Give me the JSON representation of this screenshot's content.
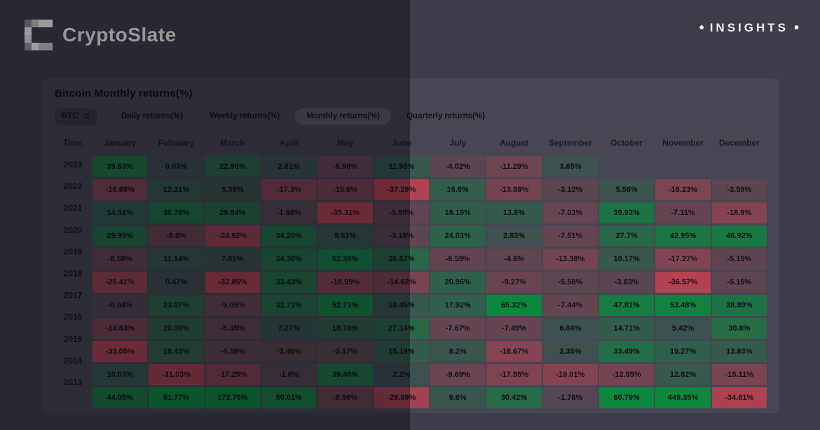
{
  "brand": {
    "name": "CryptoSlate",
    "insights": "INSIGHTS",
    "bullet": "•"
  },
  "widget": {
    "title": "Bitcoin Monthly returns(%)",
    "asset_selector": {
      "value": "BTC",
      "icon": "⇅"
    },
    "tabs": [
      {
        "label": "Daily returns(%)",
        "active": false
      },
      {
        "label": "Weekly returns(%)",
        "active": false
      },
      {
        "label": "Monthly returns(%)",
        "active": true
      },
      {
        "label": "Quarterly returns(%)",
        "active": false
      }
    ]
  },
  "chart_data": {
    "type": "heatmap",
    "title": "Bitcoin Monthly returns(%)",
    "unit": "%",
    "columns": [
      "Time",
      "January",
      "February",
      "March",
      "April",
      "May",
      "June",
      "July",
      "August",
      "September",
      "October",
      "November",
      "December"
    ],
    "rows": [
      {
        "year": "2023",
        "values": [
          39.63,
          0.03,
          22.96,
          2.81,
          -6.98,
          11.98,
          -4.02,
          -11.29,
          3.65,
          null,
          null,
          null
        ]
      },
      {
        "year": "2022",
        "values": [
          -16.68,
          12.21,
          5.39,
          -17.3,
          -15.6,
          -37.28,
          16.8,
          -13.88,
          -3.12,
          5.56,
          -16.23,
          -3.59
        ]
      },
      {
        "year": "2021",
        "values": [
          14.51,
          36.78,
          29.84,
          -1.98,
          -35.31,
          -5.95,
          18.19,
          13.8,
          -7.03,
          39.93,
          -7.11,
          -18.9
        ]
      },
      {
        "year": "2020",
        "values": [
          29.95,
          -8.6,
          -24.92,
          34.26,
          9.51,
          -3.18,
          24.03,
          2.83,
          -7.51,
          27.7,
          42.95,
          46.92
        ]
      },
      {
        "year": "2019",
        "values": [
          -8.58,
          11.14,
          7.05,
          34.36,
          52.38,
          26.67,
          -6.59,
          -4.6,
          -13.38,
          10.17,
          -17.27,
          -5.15
        ]
      },
      {
        "year": "2018",
        "values": [
          -25.41,
          0.47,
          -32.85,
          33.43,
          -18.99,
          -14.62,
          20.96,
          -9.27,
          -5.58,
          -3.83,
          -36.57,
          -5.15
        ]
      },
      {
        "year": "2017",
        "values": [
          -0.04,
          23.07,
          -9.05,
          32.71,
          52.71,
          10.45,
          17.92,
          65.32,
          -7.44,
          47.81,
          53.48,
          38.89
        ]
      },
      {
        "year": "2016",
        "values": [
          -14.83,
          20.08,
          -5.35,
          7.27,
          18.78,
          27.14,
          -7.67,
          -7.49,
          6.04,
          14.71,
          5.42,
          30.8
        ]
      },
      {
        "year": "2015",
        "values": [
          -33.05,
          18.43,
          -4.38,
          -3.46,
          -3.17,
          15.19,
          8.2,
          -18.67,
          2.35,
          33.49,
          19.27,
          13.83
        ]
      },
      {
        "year": "2014",
        "values": [
          10.03,
          -31.03,
          -17.25,
          -1.6,
          39.46,
          2.2,
          -9.69,
          -17.55,
          -19.01,
          -12.95,
          12.82,
          -15.11
        ]
      },
      {
        "year": "2013",
        "values": [
          44.05,
          61.77,
          172.76,
          50.01,
          -8.56,
          -29.89,
          9.6,
          30.42,
          -1.76,
          60.79,
          449.35,
          -34.81
        ]
      }
    ],
    "positive_color": "#0b8a3e",
    "negative_color": "#d34050",
    "legend_position": "none",
    "grid": false
  }
}
